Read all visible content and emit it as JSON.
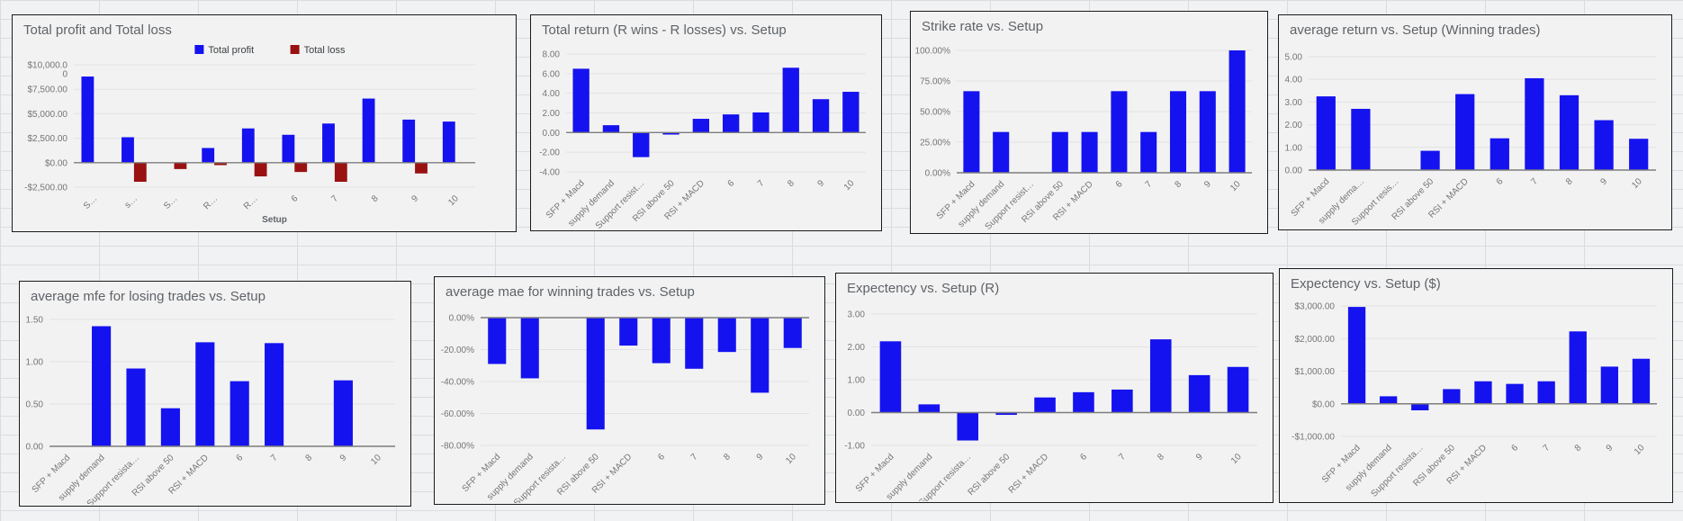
{
  "chart_data": [
    {
      "type": "bar",
      "title": "Total profit and Total loss",
      "xlabel": "Setup",
      "legend_position": "top",
      "grid": true,
      "ylim": [
        -2500,
        10000
      ],
      "yticks": [
        {
          "value": 10000,
          "label": "$10,000.0\n0"
        },
        {
          "value": 7500,
          "label": "$7,500.00"
        },
        {
          "value": 5000,
          "label": "$5,000.00"
        },
        {
          "value": 2500,
          "label": "$2,500.00"
        },
        {
          "value": 0,
          "label": "$0.00"
        },
        {
          "value": -2500,
          "label": "-$2,500.00"
        }
      ],
      "categories": [
        "S…",
        "s…",
        "S…",
        "R…",
        "R…",
        "6",
        "7",
        "8",
        "9",
        "10"
      ],
      "series": [
        {
          "name": "Total profit",
          "color": "#1512f0",
          "values": [
            8800,
            2600,
            0,
            1500,
            3500,
            2850,
            4000,
            6550,
            4400,
            4200
          ]
        },
        {
          "name": "Total loss",
          "color": "#9a1111",
          "values": [
            0,
            -1950,
            -650,
            -250,
            -1400,
            -950,
            -1950,
            0,
            -1100,
            0
          ]
        }
      ]
    },
    {
      "type": "bar",
      "title": "Total return (R wins - R losses) vs. Setup",
      "xlabel": "",
      "grid": true,
      "ylim": [
        -4,
        8
      ],
      "yticks": [
        {
          "value": 8,
          "label": "8.00"
        },
        {
          "value": 6,
          "label": "6.00"
        },
        {
          "value": 4,
          "label": "4.00"
        },
        {
          "value": 2,
          "label": "2.00"
        },
        {
          "value": 0,
          "label": "0.00"
        },
        {
          "value": -2,
          "label": "-2.00"
        },
        {
          "value": -4,
          "label": "-4.00"
        }
      ],
      "categories": [
        "SFP + Macd",
        "supply demand",
        "Support resist…",
        "RSI above 50",
        "RSI + MACD",
        "6",
        "7",
        "8",
        "9",
        "10"
      ],
      "series": [
        {
          "color": "#1512f0",
          "values": [
            6.5,
            0.75,
            -2.5,
            -0.2,
            1.4,
            1.85,
            2.05,
            6.6,
            3.4,
            4.15
          ]
        }
      ]
    },
    {
      "type": "bar",
      "title": "Strike rate vs. Setup",
      "xlabel": "",
      "grid": true,
      "ylim": [
        0,
        100
      ],
      "yticks": [
        {
          "value": 100,
          "label": "100.00%"
        },
        {
          "value": 75,
          "label": "75.00%"
        },
        {
          "value": 50,
          "label": "50.00%"
        },
        {
          "value": 25,
          "label": "25.00%"
        },
        {
          "value": 0,
          "label": "0.00%"
        }
      ],
      "categories": [
        "SFP + Macd",
        "supply demand",
        "Support resist…",
        "RSI above 50",
        "RSI + MACD",
        "6",
        "7",
        "8",
        "9",
        "10"
      ],
      "series": [
        {
          "color": "#1512f0",
          "values": [
            66.67,
            33.33,
            0,
            33.33,
            33.33,
            66.67,
            33.33,
            66.67,
            66.67,
            100
          ]
        }
      ]
    },
    {
      "type": "bar",
      "title": "average return vs. Setup (Winning trades)",
      "xlabel": "",
      "grid": true,
      "ylim": [
        0,
        5
      ],
      "yticks": [
        {
          "value": 5,
          "label": "5.00"
        },
        {
          "value": 4,
          "label": "4.00"
        },
        {
          "value": 3,
          "label": "3.00"
        },
        {
          "value": 2,
          "label": "2.00"
        },
        {
          "value": 1,
          "label": "1.00"
        },
        {
          "value": 0,
          "label": "0.00"
        }
      ],
      "categories": [
        "SFP + Macd",
        "supply dema…",
        "Support resis…",
        "RSI above 50",
        "RSI + MACD",
        "6",
        "7",
        "8",
        "9",
        "10"
      ],
      "series": [
        {
          "color": "#1512f0",
          "values": [
            3.25,
            2.7,
            0,
            0.85,
            3.35,
            1.4,
            4.05,
            3.3,
            2.2,
            1.38
          ]
        }
      ]
    },
    {
      "type": "bar",
      "title": "average mfe for losing trades vs. Setup",
      "xlabel": "",
      "grid": true,
      "ylim": [
        0,
        1.5
      ],
      "yticks": [
        {
          "value": 1.5,
          "label": "1.50"
        },
        {
          "value": 1.0,
          "label": "1.00"
        },
        {
          "value": 0.5,
          "label": "0.50"
        },
        {
          "value": 0,
          "label": "0.00"
        }
      ],
      "categories": [
        "SFP + Macd",
        "supply demand",
        "Support resista…",
        "RSI above 50",
        "RSI + MACD",
        "6",
        "7",
        "8",
        "9",
        "10"
      ],
      "series": [
        {
          "color": "#1512f0",
          "values": [
            0,
            1.42,
            0.92,
            0.45,
            1.23,
            0.77,
            1.22,
            0,
            0.78,
            0
          ]
        }
      ]
    },
    {
      "type": "bar",
      "title": "average mae for winning trades vs. Setup",
      "xlabel": "",
      "grid": true,
      "ylim": [
        -80,
        0
      ],
      "yticks": [
        {
          "value": 0,
          "label": "0.00%"
        },
        {
          "value": -20,
          "label": "-20.00%"
        },
        {
          "value": -40,
          "label": "-40.00%"
        },
        {
          "value": -60,
          "label": "-60.00%"
        },
        {
          "value": -80,
          "label": "-80.00%"
        }
      ],
      "categories": [
        "SFP + Macd",
        "supply demand",
        "Support resista…",
        "RSI above 50",
        "RSI + MACD",
        "6",
        "7",
        "8",
        "9",
        "10"
      ],
      "series": [
        {
          "color": "#1512f0",
          "values": [
            -29,
            -38,
            0,
            -70,
            -17.5,
            -28.5,
            -32,
            -21.5,
            -47,
            -19
          ]
        }
      ]
    },
    {
      "type": "bar",
      "title": "Expectency vs. Setup (R)",
      "xlabel": "",
      "grid": true,
      "ylim": [
        -1,
        3
      ],
      "yticks": [
        {
          "value": 3,
          "label": "3.00"
        },
        {
          "value": 2,
          "label": "2.00"
        },
        {
          "value": 1,
          "label": "1.00"
        },
        {
          "value": 0,
          "label": "0.00"
        },
        {
          "value": -1,
          "label": "-1.00"
        }
      ],
      "categories": [
        "SFP + Macd",
        "supply demand",
        "Support resista…",
        "RSI above 50",
        "RSI + MACD",
        "6",
        "7",
        "8",
        "9",
        "10"
      ],
      "series": [
        {
          "color": "#1512f0",
          "values": [
            2.17,
            0.25,
            -0.85,
            -0.07,
            0.46,
            0.62,
            0.7,
            2.23,
            1.14,
            1.39
          ]
        }
      ]
    },
    {
      "type": "bar",
      "title": "Expectency vs. Setup ($)",
      "xlabel": "",
      "grid": true,
      "ylim": [
        -1000,
        3000
      ],
      "yticks": [
        {
          "value": 3000,
          "label": "$3,000.00"
        },
        {
          "value": 2000,
          "label": "$2,000.00"
        },
        {
          "value": 1000,
          "label": "$1,000.00"
        },
        {
          "value": 0,
          "label": "$0.00"
        },
        {
          "value": -1000,
          "label": "-$1,000.00"
        }
      ],
      "categories": [
        "SFP + Macd",
        "supply demand",
        "Support resista…",
        "RSI above 50",
        "RSI + MACD",
        "6",
        "7",
        "8",
        "9",
        "10"
      ],
      "series": [
        {
          "color": "#1512f0",
          "values": [
            2970,
            230,
            -200,
            450,
            690,
            610,
            690,
            2220,
            1140,
            1380
          ]
        }
      ]
    }
  ],
  "colors": {
    "bar_blue": "#1512f0",
    "bar_dark_red": "#9a1111",
    "gridline": "#e2e2e2",
    "zero_axis": "#7d7d7d",
    "tick_text": "#757575",
    "title_text": "#5f6368"
  }
}
